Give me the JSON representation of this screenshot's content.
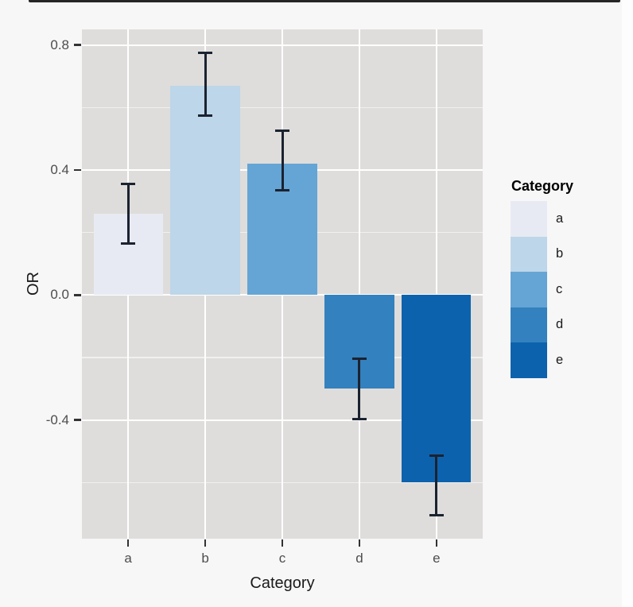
{
  "window": {
    "top_strip_color": "#262626"
  },
  "chart_data": {
    "type": "bar",
    "title": "",
    "xlabel": "Category",
    "ylabel": "OR",
    "categories": [
      "a",
      "b",
      "c",
      "d",
      "e"
    ],
    "values": [
      0.26,
      0.67,
      0.42,
      -0.3,
      -0.6
    ],
    "error_low": [
      0.16,
      0.57,
      0.33,
      -0.4,
      -0.71
    ],
    "error_high": [
      0.36,
      0.78,
      0.53,
      -0.2,
      -0.51
    ],
    "bar_colors": [
      "#E8EAF3",
      "#BDD6E9",
      "#64A5D5",
      "#3381BE",
      "#0D62AE"
    ],
    "ylim": [
      -0.78,
      0.85
    ],
    "yticks_major": [
      0.8,
      0.4,
      0.0,
      -0.4
    ],
    "ytick_labels": [
      "0.8",
      "0.4",
      "0.0",
      "-0.4"
    ],
    "yticks_minor": [
      0.6,
      0.2,
      -0.2,
      -0.6
    ],
    "grid": true,
    "legend": {
      "title": "Category",
      "position": "right",
      "labels": [
        "a",
        "b",
        "c",
        "d",
        "e"
      ]
    },
    "style": {
      "figure_bg": "#F8F7F7",
      "panel_bg": "#DEDDDB",
      "grid_major_color": "#FFFFFF",
      "grid_minor_color": "rgba(255,255,255,0.55)",
      "errorbar_color": "#1B2230",
      "tick_mark_color": "#333333",
      "tick_label_color": "#4D4D4D",
      "axis_title_color": "#1A1A1A",
      "bar_width_frac": 0.9,
      "category_expand": 0.6
    }
  }
}
